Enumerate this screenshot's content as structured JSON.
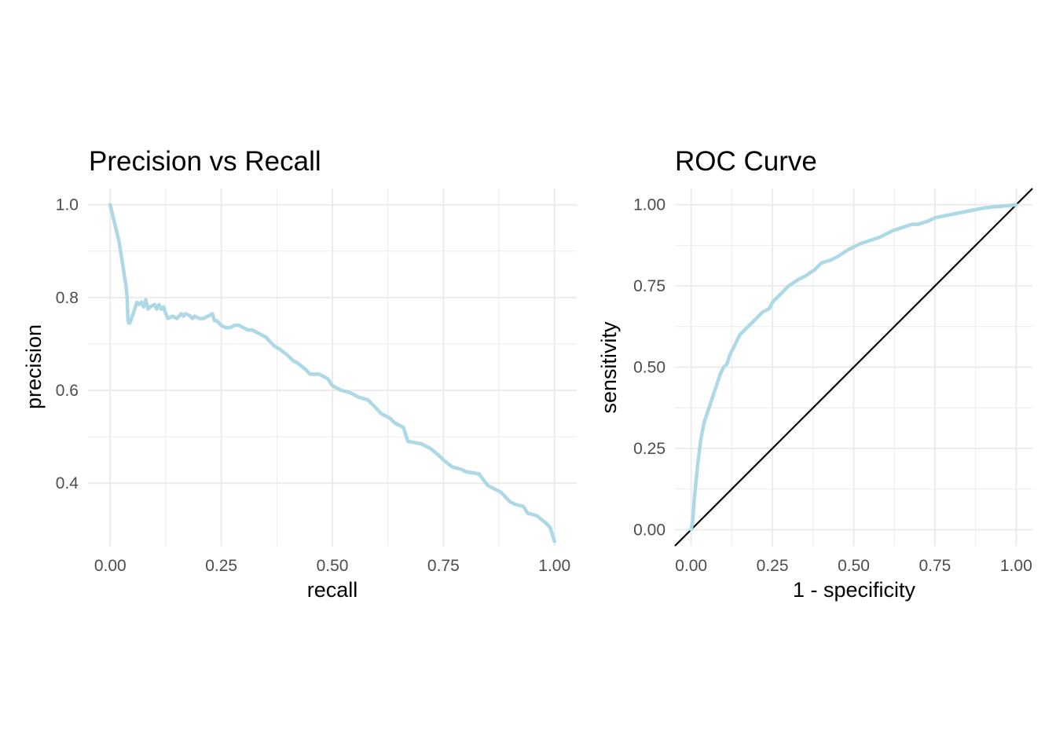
{
  "chart_data": [
    {
      "type": "line",
      "title": "Precision vs Recall",
      "xlabel": "recall",
      "ylabel": "precision",
      "xlim": [
        -0.05,
        1.05
      ],
      "ylim": [
        0.265,
        1.035
      ],
      "x_ticks": [
        0,
        0.25,
        0.5,
        0.75,
        1
      ],
      "x_tick_labels": [
        "0.00",
        "0.25",
        "0.50",
        "0.75",
        "1.00"
      ],
      "y_ticks": [
        0.4,
        0.6,
        0.8,
        1.0
      ],
      "y_tick_labels": [
        "0.4",
        "0.6",
        "0.8",
        "1.0"
      ],
      "grid": true,
      "line_color": "#add8e6",
      "series": [
        {
          "x": [
            0.0,
            0.01,
            0.02,
            0.025,
            0.03,
            0.033,
            0.035,
            0.038,
            0.04,
            0.042,
            0.044,
            0.046,
            0.05,
            0.055,
            0.06,
            0.065,
            0.07,
            0.075,
            0.08,
            0.085,
            0.09,
            0.1,
            0.105,
            0.11,
            0.115,
            0.12,
            0.125,
            0.13,
            0.14,
            0.15,
            0.16,
            0.165,
            0.17,
            0.18,
            0.185,
            0.19,
            0.2,
            0.21,
            0.22,
            0.23,
            0.235,
            0.24,
            0.25,
            0.26,
            0.27,
            0.28,
            0.29,
            0.3,
            0.31,
            0.32,
            0.33,
            0.35,
            0.37,
            0.38,
            0.4,
            0.41,
            0.42,
            0.44,
            0.45,
            0.47,
            0.48,
            0.49,
            0.5,
            0.52,
            0.54,
            0.55,
            0.56,
            0.58,
            0.59,
            0.6,
            0.61,
            0.63,
            0.64,
            0.66,
            0.67,
            0.7,
            0.72,
            0.74,
            0.75,
            0.77,
            0.79,
            0.8,
            0.83,
            0.85,
            0.86,
            0.88,
            0.9,
            0.91,
            0.93,
            0.94,
            0.96,
            0.98,
            0.99,
            1.0
          ],
          "y": [
            1.0,
            0.96,
            0.92,
            0.89,
            0.86,
            0.84,
            0.83,
            0.8,
            0.75,
            0.745,
            0.745,
            0.75,
            0.76,
            0.775,
            0.79,
            0.785,
            0.79,
            0.78,
            0.795,
            0.775,
            0.78,
            0.785,
            0.775,
            0.785,
            0.775,
            0.78,
            0.765,
            0.755,
            0.76,
            0.755,
            0.765,
            0.76,
            0.765,
            0.76,
            0.755,
            0.76,
            0.755,
            0.755,
            0.76,
            0.765,
            0.75,
            0.75,
            0.74,
            0.735,
            0.735,
            0.74,
            0.74,
            0.735,
            0.73,
            0.73,
            0.725,
            0.715,
            0.695,
            0.69,
            0.675,
            0.665,
            0.66,
            0.645,
            0.635,
            0.635,
            0.63,
            0.625,
            0.61,
            0.6,
            0.595,
            0.59,
            0.585,
            0.58,
            0.57,
            0.56,
            0.55,
            0.54,
            0.53,
            0.52,
            0.49,
            0.485,
            0.475,
            0.46,
            0.45,
            0.435,
            0.43,
            0.425,
            0.42,
            0.395,
            0.39,
            0.38,
            0.36,
            0.355,
            0.35,
            0.335,
            0.33,
            0.315,
            0.305,
            0.275
          ]
        }
      ]
    },
    {
      "type": "line",
      "title": "ROC Curve",
      "xlabel": "1 - specificity",
      "ylabel": "sensitivity",
      "xlim": [
        -0.05,
        1.05
      ],
      "ylim": [
        -0.05,
        1.05
      ],
      "x_ticks": [
        0,
        0.25,
        0.5,
        0.75,
        1
      ],
      "x_tick_labels": [
        "0.00",
        "0.25",
        "0.50",
        "0.75",
        "1.00"
      ],
      "y_ticks": [
        0,
        0.25,
        0.5,
        0.75,
        1
      ],
      "y_tick_labels": [
        "0.00",
        "0.25",
        "0.50",
        "0.75",
        "1.00"
      ],
      "grid": true,
      "line_color": "#add8e6",
      "reference_line": {
        "from": [
          0,
          0
        ],
        "to": [
          1,
          1
        ],
        "color": "#000000"
      },
      "series": [
        {
          "x": [
            0.0,
            0.005,
            0.01,
            0.015,
            0.02,
            0.025,
            0.03,
            0.04,
            0.05,
            0.06,
            0.07,
            0.08,
            0.09,
            0.1,
            0.11,
            0.12,
            0.13,
            0.14,
            0.15,
            0.17,
            0.19,
            0.2,
            0.22,
            0.24,
            0.25,
            0.27,
            0.29,
            0.3,
            0.33,
            0.35,
            0.38,
            0.4,
            0.43,
            0.45,
            0.48,
            0.5,
            0.52,
            0.55,
            0.58,
            0.6,
            0.62,
            0.65,
            0.68,
            0.7,
            0.73,
            0.75,
            0.8,
            0.85,
            0.9,
            1.0
          ],
          "y": [
            0.0,
            0.03,
            0.1,
            0.15,
            0.2,
            0.24,
            0.28,
            0.33,
            0.36,
            0.39,
            0.42,
            0.45,
            0.48,
            0.5,
            0.51,
            0.54,
            0.56,
            0.58,
            0.6,
            0.62,
            0.64,
            0.65,
            0.67,
            0.68,
            0.7,
            0.72,
            0.74,
            0.75,
            0.77,
            0.78,
            0.8,
            0.82,
            0.83,
            0.84,
            0.86,
            0.87,
            0.88,
            0.89,
            0.9,
            0.91,
            0.92,
            0.93,
            0.94,
            0.94,
            0.95,
            0.96,
            0.97,
            0.98,
            0.99,
            1.0
          ]
        }
      ]
    }
  ]
}
